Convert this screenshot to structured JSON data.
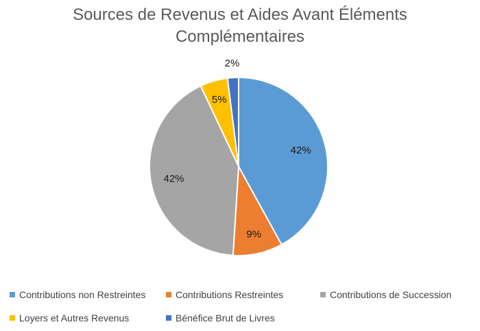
{
  "chart_data": {
    "type": "pie",
    "title": "Sources de Revenus et Aides Avant Éléments Complémentaires",
    "title_lines": [
      "Sources de Revenus et Aides Avant Éléments",
      "Complémentaires"
    ],
    "categories": [
      "Contributions non Restreintes",
      "Contributions Restreintes",
      "Contributions de Succession",
      "Loyers et Autres Revenus",
      "Bénéfice Brut de Livres"
    ],
    "values": [
      42,
      9,
      42,
      5,
      2
    ],
    "data_labels": [
      "42%",
      "9%",
      "42%",
      "5%",
      "2%"
    ],
    "colors": [
      "#5B9BD5",
      "#ED7D31",
      "#A5A5A5",
      "#FFC000",
      "#4472C4"
    ],
    "start_angle_deg": 0,
    "direction": "clockwise",
    "legend_position": "bottom"
  }
}
